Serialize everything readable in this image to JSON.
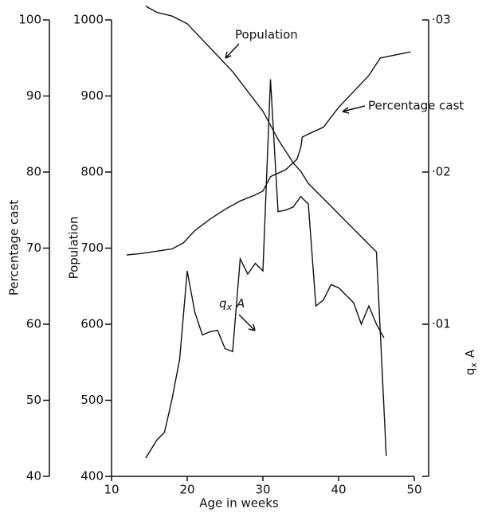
{
  "chart_data": {
    "type": "line",
    "xlabel": "Age in weeks",
    "ylabel": "Population",
    "y2label": {
      "text": "q",
      "subscript": "x",
      "suffix": "A"
    },
    "y3label": "Percentage cast",
    "xlim": [
      10,
      50
    ],
    "xticks": [
      10,
      20,
      30,
      40,
      50
    ],
    "ylim": [
      400,
      1000
    ],
    "yticks": [
      400,
      500,
      600,
      700,
      800,
      900,
      1000
    ],
    "y2lim": [
      0,
      0.03
    ],
    "y2ticks": [
      {
        "value": 0.01,
        "label": "·01"
      },
      {
        "value": 0.02,
        "label": "·02"
      },
      {
        "value": 0.03,
        "label": "·03"
      }
    ],
    "y3lim": [
      40,
      100
    ],
    "y3ticks": [
      40,
      50,
      60,
      70,
      80,
      90,
      100
    ],
    "grid": false,
    "series": [
      {
        "name": "Population",
        "color": "#111111",
        "axis": "y",
        "x": [
          14.5,
          16,
          18,
          20,
          22,
          24,
          26,
          28,
          30,
          32,
          34,
          35,
          36,
          38,
          40,
          42,
          44,
          45,
          46.3
        ],
        "values": [
          1018,
          1010,
          1005,
          995,
          974,
          953,
          932,
          906,
          880,
          843,
          812,
          801,
          785,
          765,
          745,
          725,
          705,
          695,
          427
        ]
      },
      {
        "name": "Percentage cast",
        "color": "#111111",
        "axis": "y3",
        "x": [
          12,
          14,
          16,
          18,
          19.5,
          21,
          23,
          25,
          27,
          29,
          30,
          31,
          33,
          34.5,
          35,
          35.2,
          36,
          38,
          40,
          42,
          44,
          45.5,
          47,
          49.5
        ],
        "values": [
          69.1,
          69.3,
          69.6,
          69.9,
          70.7,
          72.3,
          73.8,
          75.1,
          76.2,
          77.0,
          77.5,
          79.4,
          80.3,
          81.7,
          83.2,
          84.6,
          85.0,
          85.9,
          88.5,
          90.6,
          92.7,
          95.0,
          95.3,
          95.8
        ]
      },
      {
        "label": {
          "text": "q",
          "subscript": "x",
          "suffix": "A"
        },
        "color": "#111111",
        "axis": "y2",
        "x": [
          14.5,
          16,
          17,
          18,
          19,
          20,
          21,
          22,
          23,
          24,
          25,
          26,
          27,
          28,
          29,
          30,
          31,
          32,
          33,
          34,
          35,
          36,
          37,
          38,
          39,
          40,
          41,
          42,
          43,
          44,
          45,
          46
        ],
        "values": [
          0.0012,
          0.0024,
          0.0029,
          0.0051,
          0.0077,
          0.0135,
          0.0108,
          0.0093,
          0.0095,
          0.0096,
          0.0084,
          0.0082,
          0.0143,
          0.0133,
          0.014,
          0.0135,
          0.0261,
          0.0174,
          0.0175,
          0.0177,
          0.0184,
          0.0179,
          0.0112,
          0.0116,
          0.0126,
          0.0124,
          0.0119,
          0.0114,
          0.01,
          0.0112,
          0.01,
          0.0091
        ]
      }
    ]
  }
}
